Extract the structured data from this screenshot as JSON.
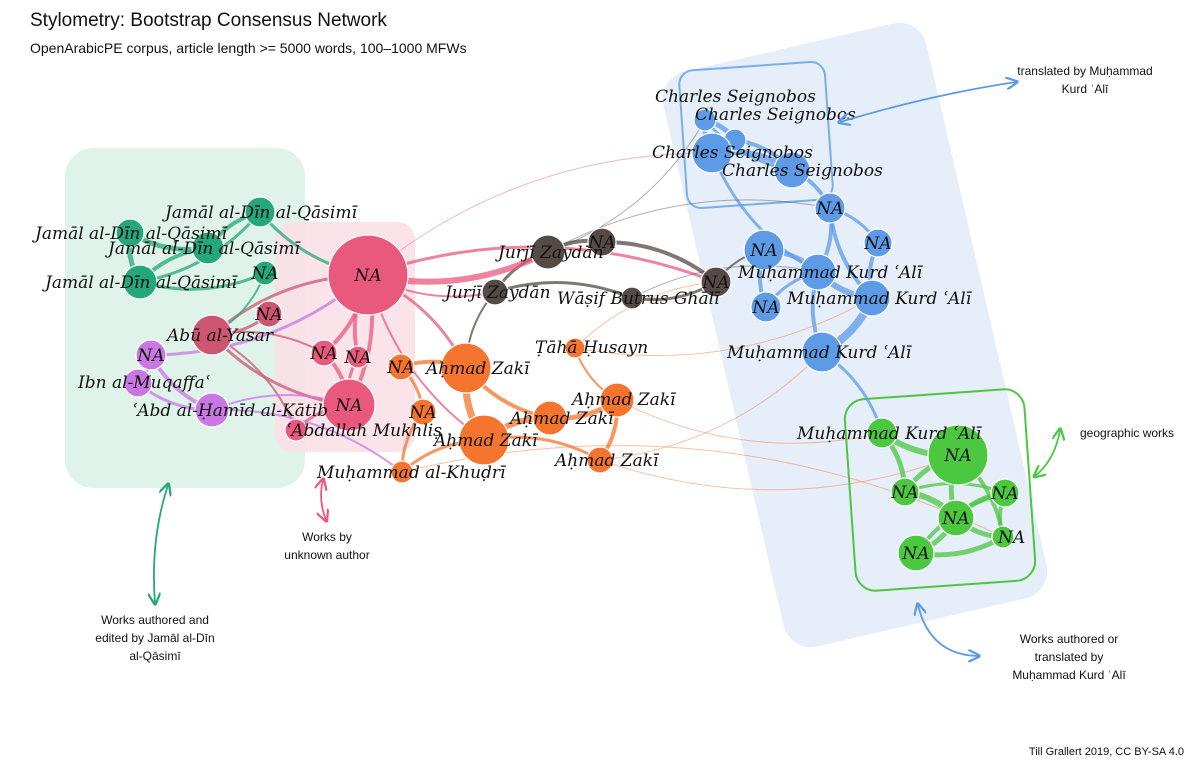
{
  "header": {
    "title": "Stylometry: Bootstrap Consensus Network",
    "subtitle": "OpenArabicPE corpus, article length >= 5000 words, 100–1000 MFWs"
  },
  "credit": "Till Grallert 2019, CC BY-SA 4.0",
  "colors": {
    "qasimi": "#23a77b",
    "unknown": "#e9597e",
    "abu_yasar": "#cc5672",
    "muqaffa": "#c978e3",
    "zaki": "#f5742e",
    "haddad": "#544a46",
    "kurd_ali": "#5d9be6",
    "geographic": "#4bc740"
  },
  "annotations": {
    "translated": [
      "translated by Muḥammad",
      "Kurd ʿAlī"
    ],
    "geographic": [
      "geographic works"
    ],
    "unknown": [
      "Works by",
      "unknown author"
    ],
    "qasimi": [
      "Works authored and",
      "edited by Jamāl al-Dīn",
      "al-Qāsimī"
    ],
    "kurd_ali": [
      "Works authored or",
      "translated by",
      "Muḥammad Kurd ʿAlī"
    ]
  },
  "nodes": [
    {
      "id": "cs1",
      "label": "Charles Seignobos",
      "group": "kurd_ali"
    },
    {
      "id": "cs2",
      "label": "Charles Seignobos",
      "group": "kurd_ali"
    },
    {
      "id": "cs3",
      "label": "Charles Seignobos",
      "group": "kurd_ali"
    },
    {
      "id": "cs4",
      "label": "Charles Seignobos",
      "group": "kurd_ali"
    },
    {
      "id": "ka_na1",
      "label": "NA",
      "group": "kurd_ali"
    },
    {
      "id": "ka_na2",
      "label": "NA",
      "group": "kurd_ali"
    },
    {
      "id": "ka_na3",
      "label": "NA",
      "group": "kurd_ali"
    },
    {
      "id": "ka_na4",
      "label": "NA",
      "group": "kurd_ali"
    },
    {
      "id": "ka1",
      "label": "Muḥammad Kurd ʿAlī",
      "group": "kurd_ali"
    },
    {
      "id": "ka2",
      "label": "Muḥammad Kurd ʿAlī",
      "group": "kurd_ali"
    },
    {
      "id": "ka3",
      "label": "Muḥammad Kurd ʿAlī",
      "group": "kurd_ali"
    },
    {
      "id": "ka4",
      "label": "Muḥammad Kurd ʿAlī",
      "group": "geographic"
    },
    {
      "id": "g_na1",
      "label": "NA",
      "group": "geographic"
    },
    {
      "id": "g_na2",
      "label": "NA",
      "group": "geographic"
    },
    {
      "id": "g_na3",
      "label": "NA",
      "group": "geographic"
    },
    {
      "id": "g_na4",
      "label": "NA",
      "group": "geographic"
    },
    {
      "id": "g_na5",
      "label": "NA",
      "group": "geographic"
    },
    {
      "id": "g_na6",
      "label": "NA",
      "group": "geographic"
    },
    {
      "id": "jh1",
      "label": "Jurjī Zaydān",
      "group": "haddad"
    },
    {
      "id": "na_dark",
      "label": "NA",
      "group": "haddad"
    },
    {
      "id": "jh2",
      "label": "Jurjī Zaydān",
      "group": "haddad"
    },
    {
      "id": "wbg",
      "label": "Wāṣif Buṭrus Ghālī",
      "group": "haddad"
    },
    {
      "id": "na_dark2",
      "label": "NA",
      "group": "haddad"
    },
    {
      "id": "th",
      "label": "Ṭāhā Ḥusayn",
      "group": "zaki"
    },
    {
      "id": "az1",
      "label": "Aḥmad Zakī",
      "group": "zaki"
    },
    {
      "id": "az2",
      "label": "Aḥmad Zakī",
      "group": "zaki"
    },
    {
      "id": "az3",
      "label": "Aḥmad Zakī",
      "group": "zaki"
    },
    {
      "id": "az4",
      "label": "Aḥmad Zakī",
      "group": "zaki"
    },
    {
      "id": "az5",
      "label": "Aḥmad Zakī",
      "group": "zaki"
    },
    {
      "id": "z_na1",
      "label": "NA",
      "group": "zaki"
    },
    {
      "id": "z_na2",
      "label": "NA",
      "group": "zaki"
    },
    {
      "id": "mk",
      "label": "Muḥammad al-Khuḍrī",
      "group": "zaki"
    },
    {
      "id": "na_big",
      "label": "NA",
      "group": "unknown"
    },
    {
      "id": "na_pink2",
      "label": "NA",
      "group": "unknown"
    },
    {
      "id": "u_na1",
      "label": "NA",
      "group": "unknown"
    },
    {
      "id": "u_na2",
      "label": "NA",
      "group": "unknown"
    },
    {
      "id": "am",
      "label": "ʿAbdallah Mukhliṣ",
      "group": "unknown"
    },
    {
      "id": "aby",
      "label": "Abū al-Yasar",
      "group": "abu_yasar"
    },
    {
      "id": "ay_na",
      "label": "NA",
      "group": "abu_yasar"
    },
    {
      "id": "q1",
      "label": "Jamāl al-Dīn al-Qāsimī",
      "group": "qasimi"
    },
    {
      "id": "q2",
      "label": "Jamāl al-Dīn al-Qāsimī",
      "group": "qasimi"
    },
    {
      "id": "q3",
      "label": "Jamāl al-Dīn al-Qāsimī",
      "group": "qasimi"
    },
    {
      "id": "q4",
      "label": "Jamāl al-Dīn al-Qāsimī",
      "group": "qasimi"
    },
    {
      "id": "q_na",
      "label": "NA",
      "group": "qasimi"
    },
    {
      "id": "m_na",
      "label": "NA",
      "group": "muqaffa"
    },
    {
      "id": "im",
      "label": "Ibn al-Muqaffaʿ",
      "group": "muqaffa"
    },
    {
      "id": "ah",
      "label": "ʿAbd al-Ḥamīd al-Kātib",
      "group": "muqaffa"
    }
  ],
  "edges": [
    [
      "cs1",
      "cs2",
      5
    ],
    [
      "cs2",
      "cs3",
      5
    ],
    [
      "cs3",
      "cs4",
      6
    ],
    [
      "cs1",
      "cs3",
      4
    ],
    [
      "cs2",
      "cs4",
      4
    ],
    [
      "cs1",
      "cs4",
      3
    ],
    [
      "cs4",
      "ka_na1",
      4
    ],
    [
      "cs3",
      "ka1",
      3
    ],
    [
      "ka_na1",
      "ka1",
      4
    ],
    [
      "ka_na1",
      "ka2",
      4
    ],
    [
      "ka_na1",
      "ka_na2",
      3
    ],
    [
      "ka1",
      "ka2",
      6
    ],
    [
      "ka2",
      "ka3",
      8
    ],
    [
      "ka1",
      "ka3",
      4
    ],
    [
      "ka_na3",
      "ka1",
      5
    ],
    [
      "ka_na3",
      "ka_na4",
      4
    ],
    [
      "ka_na4",
      "ka1",
      3
    ],
    [
      "ka_na2",
      "ka2",
      4
    ],
    [
      "ka3",
      "ka4",
      3
    ],
    [
      "ka4",
      "g_na1",
      6
    ],
    [
      "ka4",
      "g_na2",
      5
    ],
    [
      "g_na1",
      "g_na2",
      5
    ],
    [
      "g_na2",
      "g_na3",
      6
    ],
    [
      "g_na1",
      "g_na3",
      5
    ],
    [
      "g_na3",
      "g_na4",
      5
    ],
    [
      "g_na3",
      "g_na5",
      5
    ],
    [
      "g_na3",
      "g_na6",
      5
    ],
    [
      "g_na4",
      "g_na5",
      4
    ],
    [
      "g_na5",
      "g_na6",
      5
    ],
    [
      "g_na4",
      "g_na6",
      4
    ],
    [
      "g_na2",
      "g_na4",
      3
    ],
    [
      "g_na5",
      "g_na1",
      4
    ],
    [
      "jh1",
      "na_dark",
      4
    ],
    [
      "jh1",
      "jh2",
      3
    ],
    [
      "jh2",
      "wbg",
      3
    ],
    [
      "wbg",
      "na_dark2",
      3
    ],
    [
      "na_dark",
      "na_dark2",
      4
    ],
    [
      "na_big",
      "jh1",
      6
    ],
    [
      "na_big",
      "na_dark2",
      3
    ],
    [
      "na_big",
      "jh2",
      2
    ],
    [
      "na_dark2",
      "ka_na3",
      2
    ],
    [
      "az1",
      "az2",
      7
    ],
    [
      "az2",
      "az3",
      6
    ],
    [
      "az3",
      "az4",
      5
    ],
    [
      "az4",
      "az5",
      4
    ],
    [
      "az1",
      "az3",
      4
    ],
    [
      "az2",
      "az5",
      3
    ],
    [
      "az1",
      "z_na1",
      4
    ],
    [
      "z_na1",
      "z_na2",
      3
    ],
    [
      "az2",
      "mk",
      3
    ],
    [
      "mk",
      "z_na2",
      3
    ],
    [
      "th",
      "az4",
      2
    ],
    [
      "na_big",
      "az1",
      3
    ],
    [
      "na_big",
      "az2",
      2
    ],
    [
      "na_big",
      "u_na1",
      4
    ],
    [
      "na_big",
      "u_na2",
      4
    ],
    [
      "na_big",
      "na_pink2",
      4
    ],
    [
      "na_pink2",
      "am",
      3
    ],
    [
      "u_na1",
      "na_pink2",
      4
    ],
    [
      "u_na2",
      "na_pink2",
      3
    ],
    [
      "aby",
      "na_big",
      3
    ],
    [
      "aby",
      "ay_na",
      3
    ],
    [
      "aby",
      "u_na1",
      2
    ],
    [
      "aby",
      "na_pink2",
      3
    ],
    [
      "aby",
      "am",
      2
    ],
    [
      "q1",
      "q2",
      4
    ],
    [
      "q2",
      "q3",
      5
    ],
    [
      "q3",
      "q4",
      5
    ],
    [
      "q1",
      "q4",
      3
    ],
    [
      "q2",
      "q4",
      4
    ],
    [
      "q_na",
      "q4",
      3
    ],
    [
      "q1",
      "na_big",
      3
    ],
    [
      "q_na",
      "aby",
      2
    ],
    [
      "m_na",
      "ah",
      4
    ],
    [
      "m_na",
      "im",
      3
    ],
    [
      "im",
      "ah",
      3
    ],
    [
      "ah",
      "na_pink2",
      2
    ],
    [
      "m_na",
      "na_big",
      3
    ],
    [
      "ah",
      "mk",
      2
    ],
    [
      "jh2",
      "az1",
      2
    ],
    [
      "th",
      "na_dark2",
      1
    ],
    [
      "az4",
      "ka4",
      1
    ],
    [
      "mk",
      "g_na5",
      1
    ],
    [
      "az5",
      "g_na1",
      1
    ],
    [
      "wbg",
      "ka1",
      1
    ],
    [
      "jh1",
      "cs1",
      1
    ],
    [
      "jh1",
      "ka_na1",
      1
    ],
    [
      "az5",
      "ka3",
      1
    ],
    [
      "na_big",
      "cs3",
      1
    ],
    [
      "th",
      "ka2",
      1
    ]
  ]
}
